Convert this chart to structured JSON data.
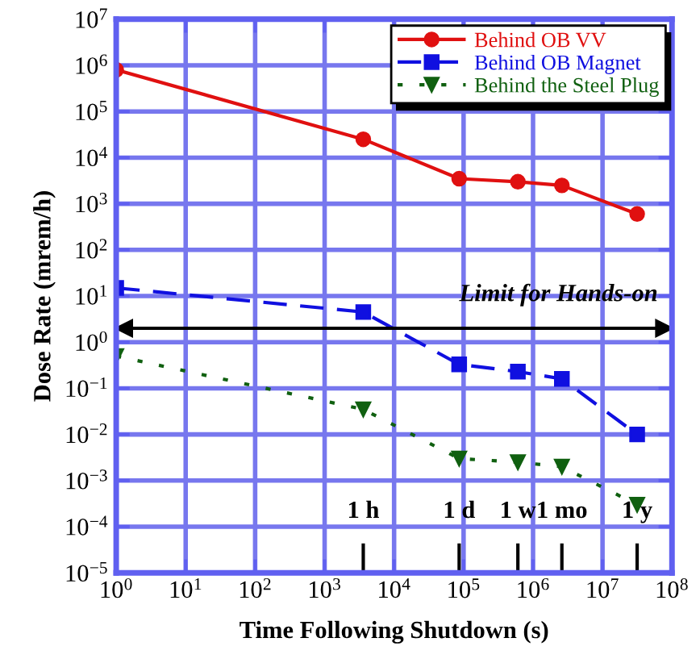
{
  "chart_data": {
    "type": "line",
    "xlabel": "Time Following Shutdown (s)",
    "ylabel": "Dose Rate (mrem/h)",
    "log": "xy",
    "x": [
      1,
      3600,
      86400,
      604800,
      2600000,
      31500000
    ],
    "series": [
      {
        "name": "Behind OB VV",
        "color": "#e01010",
        "values": [
          800000,
          25000,
          3500,
          3000,
          2500,
          600
        ],
        "marker": "circle",
        "line_style": "solid"
      },
      {
        "name": "Behind OB Magnet",
        "color": "#1010e0",
        "values": [
          15,
          4.5,
          0.33,
          0.23,
          0.16,
          0.01
        ],
        "marker": "square",
        "line_style": "dashed"
      },
      {
        "name": "Behind the Steel Plug",
        "color": "#106010",
        "values": [
          0.5,
          0.035,
          0.003,
          0.0025,
          0.002,
          0.0003
        ],
        "marker": "triangle",
        "line_style": "dotted"
      }
    ],
    "xlim": [
      1,
      100000000
    ],
    "ylim": [
      1e-05,
      10000000
    ],
    "xticks": [
      {
        "value": 1,
        "label": "10$^{0}$"
      },
      {
        "value": 10,
        "label": "10$^{1}$"
      },
      {
        "value": 100,
        "label": "10$^{2}$"
      },
      {
        "value": 1000,
        "label": "10$^{3}$"
      },
      {
        "value": 10000,
        "label": "10$^{4}$"
      },
      {
        "value": 100000,
        "label": "10$^{5}$"
      },
      {
        "value": 1000000,
        "label": "10$^{6}$"
      },
      {
        "value": 10000000,
        "label": "10$^{7}$"
      },
      {
        "value": 100000000,
        "label": "10$^{8}$"
      }
    ],
    "yticks": [
      {
        "value": 1e-05,
        "label": "10$^{−5}$"
      },
      {
        "value": 0.0001,
        "label": "10$^{−4}$"
      },
      {
        "value": 0.001,
        "label": "10$^{−3}$"
      },
      {
        "value": 0.01,
        "label": "10$^{−2}$"
      },
      {
        "value": 0.1,
        "label": "10$^{−1}$"
      },
      {
        "value": 1,
        "label": "10$^{0}$"
      },
      {
        "value": 10,
        "label": "10$^{1}$"
      },
      {
        "value": 100,
        "label": "10$^{2}$"
      },
      {
        "value": 1000,
        "label": "10$^{3}$"
      },
      {
        "value": 10000,
        "label": "10$^{4}$"
      },
      {
        "value": 100000,
        "label": "10$^{5}$"
      },
      {
        "value": 1000000,
        "label": "10$^{6}$"
      },
      {
        "value": 10000000,
        "label": "10$^{7}$"
      }
    ],
    "ref_lines": [
      {
        "axis": "y",
        "value": 2,
        "label": "Limit for Hands-on",
        "color": "#000000"
      },
      {
        "axis": "x",
        "value": 3600,
        "label": "1 h",
        "color": "#000000"
      },
      {
        "axis": "x",
        "value": 86400,
        "label": "1 d",
        "color": "#000000"
      },
      {
        "axis": "x",
        "value": 604800,
        "label": "1 w",
        "color": "#000000"
      },
      {
        "axis": "x",
        "value": 2600000,
        "label": "1 mo",
        "color": "#000000"
      },
      {
        "axis": "x",
        "value": 31500000,
        "label": "1 y",
        "color": "#000000"
      }
    ],
    "grid": true,
    "legend": "top right"
  }
}
